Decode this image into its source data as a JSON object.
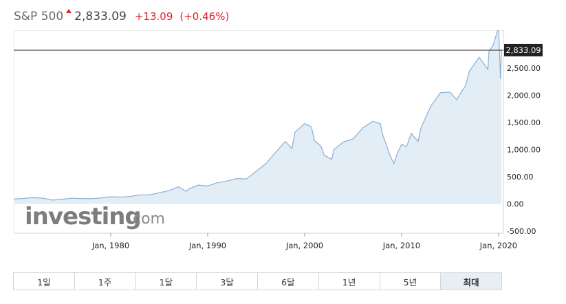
{
  "header": {
    "symbol": "S&P 500",
    "price": "2,833.09",
    "change": "+13.09",
    "change_pct": "(+0.46%)",
    "up_color": "#e0202a"
  },
  "price_label": "2,833.09",
  "watermark": {
    "brand": "investing",
    "suffix": ".com"
  },
  "tabs": [
    {
      "label": "1일",
      "active": false
    },
    {
      "label": "1주",
      "active": false
    },
    {
      "label": "1달",
      "active": false
    },
    {
      "label": "3달",
      "active": false
    },
    {
      "label": "6달",
      "active": false
    },
    {
      "label": "1년",
      "active": false
    },
    {
      "label": "5년",
      "active": false
    },
    {
      "label": "최대",
      "active": true
    }
  ],
  "chart_data": {
    "type": "area",
    "xlabel": "",
    "ylabel": "",
    "y_ticks": [
      "2,500.00",
      "2,000.00",
      "1,500.00",
      "1,000.00",
      "500.00",
      "0.00",
      "-500.00"
    ],
    "y_tick_values": [
      2500,
      2000,
      1500,
      1000,
      500,
      0,
      -500
    ],
    "x_ticks": [
      "Jan, 1980",
      "Jan, 1990",
      "Jan, 2000",
      "Jan, 2010",
      "Jan, 2020"
    ],
    "x_tick_values": [
      1980,
      1990,
      2000,
      2010,
      2020
    ],
    "xlim": [
      1970,
      2020.5
    ],
    "ylim": [
      -540,
      3200
    ],
    "last_value": 2833.09,
    "grid": false,
    "line_color": "#8fb4d6",
    "fill_color": "#e3edf5",
    "series": [
      {
        "x": [
          1970,
          1971,
          1972,
          1973,
          1974,
          1975,
          1976,
          1977,
          1978,
          1979,
          1980,
          1981,
          1982,
          1983,
          1984,
          1985,
          1986,
          1987,
          1987.8,
          1988,
          1989,
          1990,
          1991,
          1992,
          1993,
          1994,
          1995,
          1996,
          1997,
          1998,
          1998.7,
          1999,
          2000,
          2000.7,
          2001,
          2001.7,
          2002,
          2002.8,
          2003,
          2004,
          2005,
          2006,
          2007,
          2007.8,
          2008,
          2008.8,
          2009.2,
          2009.6,
          2010,
          2010.5,
          2011,
          2011.7,
          2012,
          2013,
          2014,
          2015,
          2015.7,
          2016,
          2016.6,
          2017,
          2018,
          2018.9,
          2019,
          2019.5,
          2019.9,
          2020,
          2020.2,
          2020.3
        ],
        "values": [
          90,
          100,
          115,
          105,
          70,
          85,
          105,
          98,
          96,
          108,
          130,
          125,
          135,
          165,
          165,
          205,
          245,
          315,
          230,
          270,
          345,
          330,
          390,
          420,
          465,
          460,
          600,
          740,
          950,
          1150,
          1020,
          1320,
          1480,
          1420,
          1170,
          1060,
          900,
          820,
          1000,
          1140,
          1200,
          1400,
          1520,
          1480,
          1300,
          900,
          740,
          950,
          1100,
          1050,
          1300,
          1150,
          1400,
          1800,
          2050,
          2060,
          1920,
          2020,
          2180,
          2450,
          2700,
          2480,
          2800,
          2950,
          3200,
          3230,
          2300,
          2833
        ]
      }
    ]
  }
}
